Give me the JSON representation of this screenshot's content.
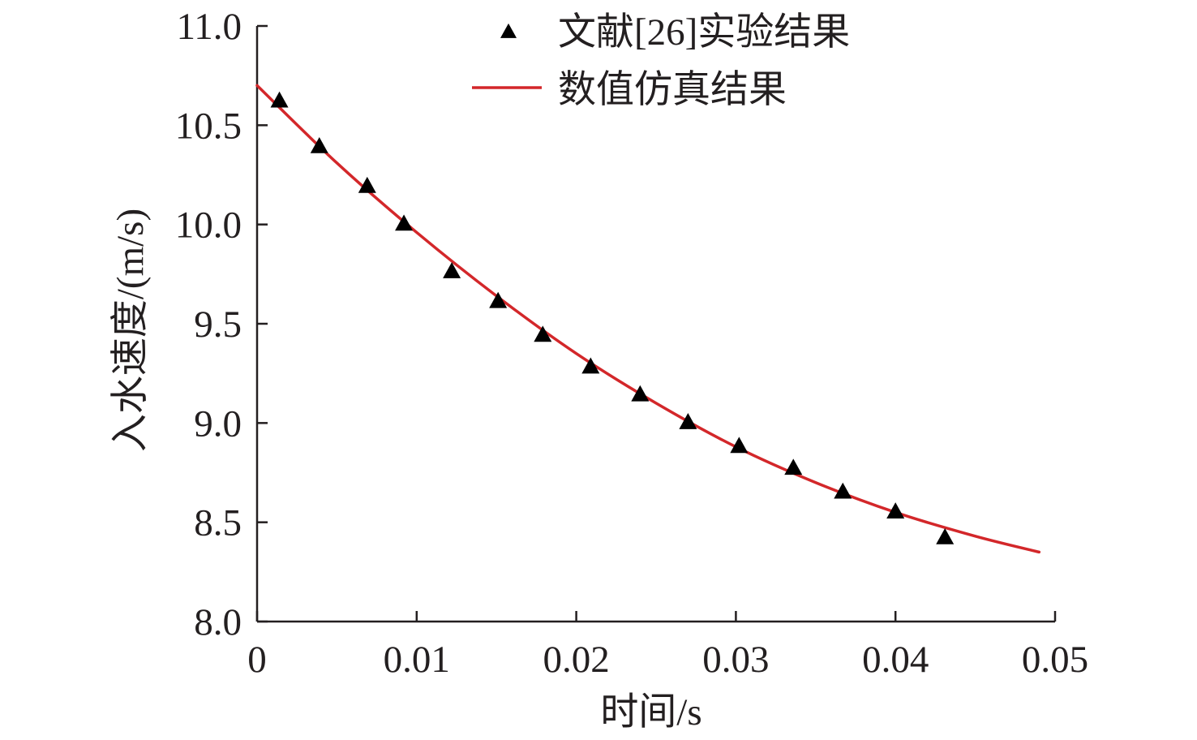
{
  "chart_data": {
    "type": "scatter",
    "xlabel": "时间/s",
    "ylabel": "入水速度/(m/s)",
    "xlim": [
      0,
      0.05
    ],
    "ylim": [
      8.0,
      11.0
    ],
    "x_ticks": [
      0,
      0.01,
      0.02,
      0.03,
      0.04,
      0.05
    ],
    "x_tick_labels": [
      "0",
      "0.01",
      "0.02",
      "0.03",
      "0.04",
      "0.05"
    ],
    "y_ticks": [
      8.0,
      8.5,
      9.0,
      9.5,
      10.0,
      10.5,
      11.0
    ],
    "y_tick_labels": [
      "8.0",
      "8.5",
      "9.0",
      "9.5",
      "10.0",
      "10.5",
      "11.0"
    ],
    "grid": false,
    "legend_position": "top-center",
    "series": [
      {
        "name": "文献[26]实验结果",
        "kind": "scatter",
        "marker": "triangle",
        "color": "#000000",
        "x": [
          0.0014,
          0.0039,
          0.0069,
          0.0092,
          0.0122,
          0.0151,
          0.0179,
          0.0209,
          0.024,
          0.027,
          0.0302,
          0.0336,
          0.0367,
          0.04,
          0.0431
        ],
        "y": [
          10.62,
          10.39,
          10.19,
          10.0,
          9.76,
          9.61,
          9.44,
          9.28,
          9.14,
          9.0,
          8.88,
          8.77,
          8.65,
          8.55,
          8.42
        ]
      },
      {
        "name": "数值仿真结果",
        "kind": "line",
        "color": "#d3272a",
        "x": [
          0,
          0.005,
          0.01,
          0.015,
          0.02,
          0.025,
          0.03,
          0.035,
          0.04,
          0.045,
          0.049
        ],
        "y": [
          10.7,
          10.31,
          9.96,
          9.64,
          9.35,
          9.1,
          8.88,
          8.7,
          8.55,
          8.43,
          8.35
        ]
      }
    ]
  }
}
